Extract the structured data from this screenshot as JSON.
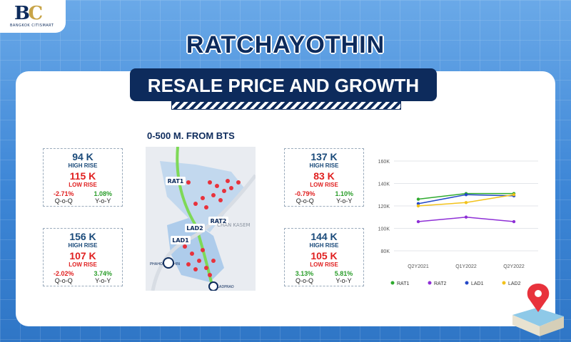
{
  "logo": {
    "tagline": "BANGKOK CITISMART"
  },
  "title": "RATCHAYOTHIN",
  "subtitle": "RESALE PRICE AND GROWTH",
  "map": {
    "label": "0-500 M. FROM BTS",
    "areas": [
      "RAT1",
      "RAT2",
      "LAD1",
      "LAD2"
    ],
    "streets": [
      "PHAHONYOTHIN",
      "CHAN KASEM",
      "LADPRAO",
      "PHAHON YOTHIN"
    ],
    "colors": {
      "route": "#7ed957",
      "pin": "#e8323c",
      "area": "#8cb8e8"
    }
  },
  "boxes": {
    "rat1": {
      "hr": "94 K",
      "hr_label": "HIGH RISE",
      "lr": "115 K",
      "lr_label": "LOW RISE",
      "qoq": "-2.71%",
      "yoy": "1.08%",
      "qoq_label": "Q-o-Q",
      "yoy_label": "Y-o-Y"
    },
    "rat2": {
      "hr": "137 K",
      "hr_label": "HIGH RISE",
      "lr": "83 K",
      "lr_label": "LOW RISE",
      "qoq": "-0.79%",
      "yoy": "1.10%",
      "qoq_label": "Q-o-Q",
      "yoy_label": "Y-o-Y"
    },
    "lad1": {
      "hr": "156 K",
      "hr_label": "HIGH RISE",
      "lr": "107 K",
      "lr_label": "LOW RISE",
      "qoq": "-2.02%",
      "yoy": "3.74%",
      "qoq_label": "Q-o-Q",
      "yoy_label": "Y-o-Y"
    },
    "lad2": {
      "hr": "144 K",
      "hr_label": "HIGH RISE",
      "lr": "105 K",
      "lr_label": "LOW RISE",
      "qoq": "3.13%",
      "yoy": "5.81%",
      "qoq_label": "Q-o-Q",
      "yoy_label": "Y-o-Y"
    }
  },
  "chart_data": {
    "type": "line",
    "x": [
      "Q2Y2021",
      "Q1Y2022",
      "Q2Y2022"
    ],
    "ylim": [
      80000,
      160000
    ],
    "yticks": [
      80000,
      100000,
      120000,
      140000,
      160000
    ],
    "ytick_labels": [
      "80K",
      "100K",
      "120K",
      "140K",
      "160K"
    ],
    "grid": true,
    "legend": "bottom",
    "series": [
      {
        "name": "RAT1",
        "color": "#2eaa2e",
        "values": [
          126000,
          131000,
          131000
        ]
      },
      {
        "name": "RAT2",
        "color": "#8e2fd6",
        "values": [
          106000,
          110000,
          106000
        ]
      },
      {
        "name": "LAD1",
        "color": "#2448c8",
        "values": [
          122000,
          130000,
          129000
        ]
      },
      {
        "name": "LAD2",
        "color": "#f2c21b",
        "values": [
          120000,
          123000,
          130000
        ]
      }
    ]
  }
}
